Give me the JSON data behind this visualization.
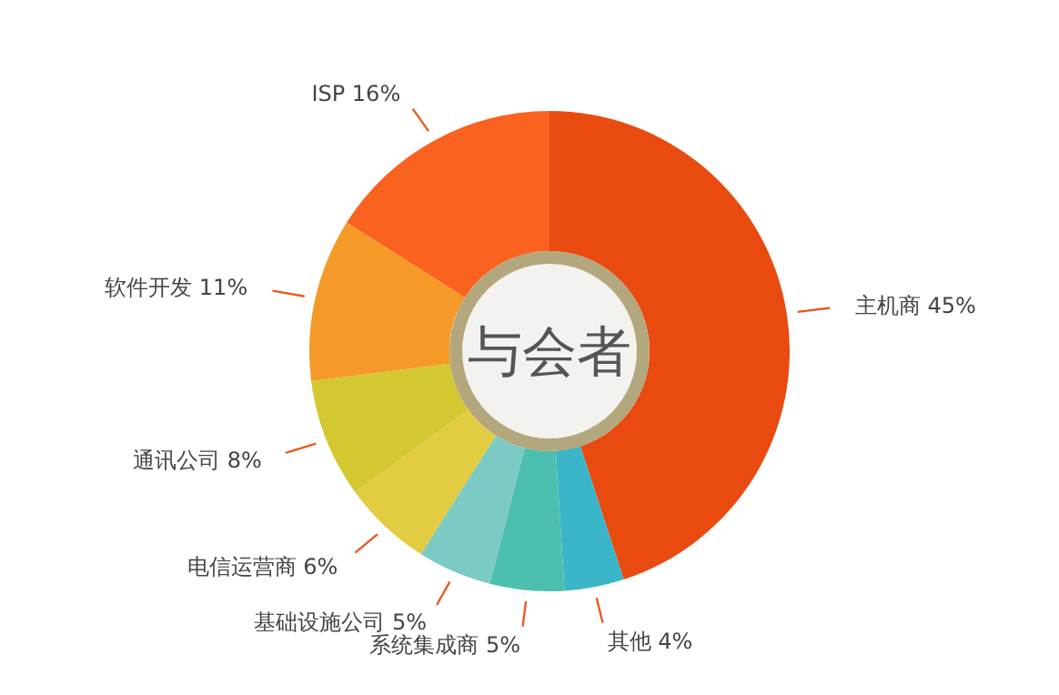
{
  "chart_data": {
    "type": "donut",
    "title": "与会者",
    "categories": [
      "主机商",
      "其他",
      "系统集成商",
      "基础设施公司",
      "电信运营商",
      "通讯公司",
      "软件开发",
      "ISP"
    ],
    "values": [
      45,
      4,
      5,
      5,
      6,
      8,
      11,
      16
    ],
    "value_labels": [
      "45%",
      "4%",
      "5%",
      "5%",
      "6%",
      "8%",
      "11%",
      "16%"
    ],
    "colors": [
      "#e84a10",
      "#3ab6c8",
      "#4dbfae",
      "#7ccac4",
      "#e2cc42",
      "#d4c832",
      "#f59a28",
      "#f9621f"
    ]
  }
}
